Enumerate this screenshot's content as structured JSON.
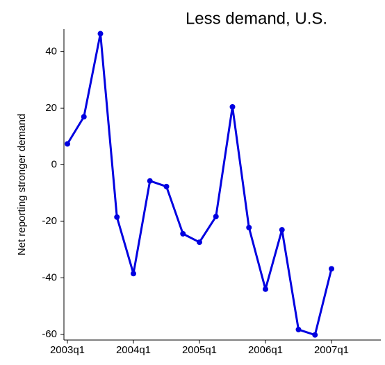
{
  "chart_data": {
    "type": "line",
    "title": "Less demand, U.S.",
    "y_label": "Net reporting stronger demand",
    "categories": [
      "2003q1",
      null,
      null,
      null,
      "2004q1",
      null,
      null,
      null,
      "2005q1",
      null,
      null,
      null,
      "2006q1",
      null,
      null,
      null,
      "2007q1"
    ],
    "series": [
      {
        "name": "Less demand, U.S.",
        "color": "#0000e0",
        "values": [
          7.4,
          17,
          46.4,
          -18.5,
          -38.5,
          -5.7,
          -7.7,
          -24.4,
          -27.4,
          -18.3,
          20.5,
          -22.2,
          -44,
          -23,
          -58.3,
          -60.2,
          -36.8
        ]
      }
    ],
    "ylim": [
      -62,
      48
    ],
    "yticks": [
      -60,
      -40,
      -20,
      0,
      20,
      40
    ],
    "grid": false
  }
}
